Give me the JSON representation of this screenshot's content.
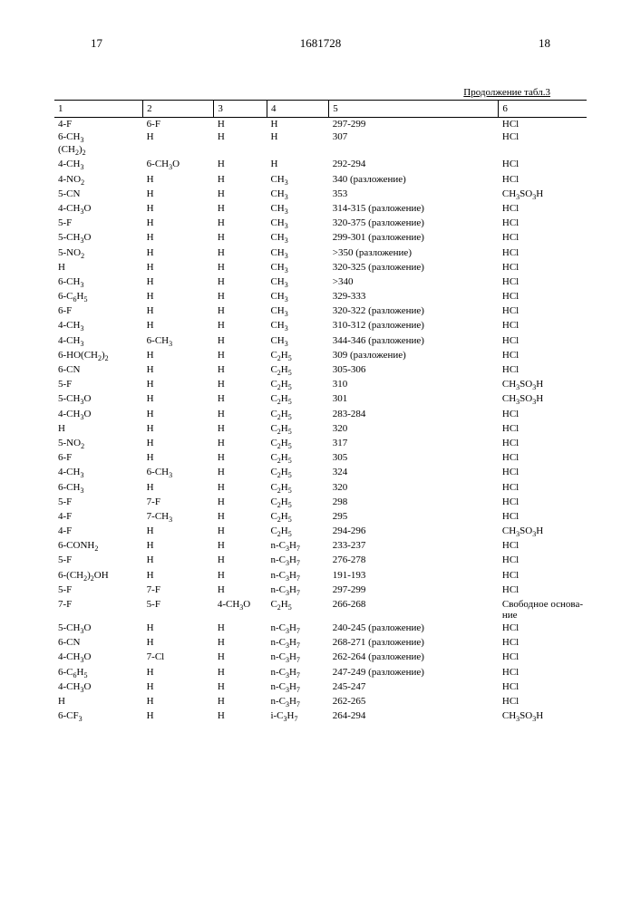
{
  "header": {
    "page_left": "17",
    "doc_number": "1681728",
    "page_right": "18"
  },
  "caption": "Продолжение табл.3",
  "columns": [
    "1",
    "2",
    "3",
    "4",
    "5",
    "6"
  ],
  "rows": [
    [
      "4-F",
      "6-F",
      "H",
      "H",
      "297-299",
      "HCl"
    ],
    [
      "6-CH₃\n(CH₂)₂",
      "H",
      "H",
      "H",
      "307",
      "HCl"
    ],
    [
      "4-CH₃",
      "6-CH₃O",
      "H",
      "H",
      "292-294",
      "HCl"
    ],
    [
      "4-NO₂",
      "H",
      "H",
      "CH₃",
      "340 (разложение)",
      "HCl"
    ],
    [
      "5-CN",
      "H",
      "H",
      "CH₃",
      "353",
      "CH₃SO₃H"
    ],
    [
      "4-CH₃O",
      "H",
      "H",
      "CH₃",
      "314-315 (разложение)",
      "HCl"
    ],
    [
      "5-F",
      "H",
      "H",
      "CH₃",
      "320-375 (разложение)",
      "HCl"
    ],
    [
      "5-CH₃O",
      "H",
      "H",
      "CH₃",
      "299-301 (разложение)",
      "HCl"
    ],
    [
      "5-NO₂",
      "H",
      "H",
      "CH₃",
      ">350 (разложение)",
      "HCl"
    ],
    [
      "H",
      "H",
      "H",
      "CH₃",
      "320-325 (разложение)",
      "HCl"
    ],
    [
      "6-CH₃",
      "H",
      "H",
      "CH₃",
      ">340",
      "HCl"
    ],
    [
      "6-C₆H₅",
      "H",
      "H",
      "CH₃",
      "329-333",
      "HCl"
    ],
    [
      "6-F",
      "H",
      "H",
      "CH₃",
      "320-322 (разложение)",
      "HCl"
    ],
    [
      "4-CH₃",
      "H",
      "H",
      "CH₃",
      "310-312 (разложение)",
      "HCl"
    ],
    [
      "4-CH₃",
      "6-CH₃",
      "H",
      "CH₃",
      "344-346 (разложение)",
      "HCl"
    ],
    [
      "6-HO(CH₂)₂",
      "H",
      "H",
      "C₂H₅",
      "309 (разложение)",
      "HCl"
    ],
    [
      "6-CN",
      "H",
      "H",
      "C₂H₅",
      "305-306",
      "HCl"
    ],
    [
      "5-F",
      "H",
      "H",
      "C₂H₅",
      "310",
      "CH₃SO₃H"
    ],
    [
      "5-CH₃O",
      "H",
      "H",
      "C₂H₅",
      "301",
      "CH₃SO₃H"
    ],
    [
      "4-CH₃O",
      "H",
      "H",
      "C₂H₅",
      "283-284",
      "HCl"
    ],
    [
      "H",
      "H",
      "H",
      "C₂H₅",
      "320",
      "HCl"
    ],
    [
      "5-NO₂",
      "H",
      "H",
      "C₂H₅",
      "317",
      "HCl"
    ],
    [
      "6-F",
      "H",
      "H",
      "C₂H₅",
      "305",
      "HCl"
    ],
    [
      "4-CH₃",
      "6-CH₃",
      "H",
      "C₂H₅",
      "324",
      "HCl"
    ],
    [
      "6-CH₃",
      "H",
      "H",
      "C₂H₅",
      "320",
      "HCl"
    ],
    [
      "5-F",
      "7-F",
      "H",
      "C₂H₅",
      "298",
      "HCl"
    ],
    [
      "4-F",
      "7-CH₃",
      "H",
      "C₂H₅",
      "295",
      "HCl"
    ],
    [
      "4-F",
      "H",
      "H",
      "C₂H₅",
      "294-296",
      "CH₃SO₃H"
    ],
    [
      "6-CONH₂",
      "H",
      "H",
      "n-C₃H₇",
      "233-237",
      "HCl"
    ],
    [
      "5-F",
      "H",
      "H",
      "n-C₃H₇",
      "276-278",
      "HCl"
    ],
    [
      "6-(CH₂)₂OH",
      "H",
      "H",
      "n-C₃H₇",
      "191-193",
      "HCl"
    ],
    [
      "5-F",
      "7-F",
      "H",
      "n-C₃H₇",
      "297-299",
      "HCl"
    ],
    [
      "7-F",
      "5-F",
      "4-CH₃O",
      "C₂H₅",
      "266-268",
      "Свободное основа-\nние"
    ],
    [
      "5-CH₃O",
      "H",
      "H",
      "n-C₃H₇",
      "240-245 (разложение)",
      "HCl"
    ],
    [
      "6-CN",
      "H",
      "H",
      "n-C₃H₇",
      "268-271 (разложение)",
      "HCl"
    ],
    [
      "4-CH₃O",
      "7-Cl",
      "H",
      "n-C₃H₇",
      "262-264 (разложение)",
      "HCl"
    ],
    [
      "6-C₆H₅",
      "H",
      "H",
      "n-C₃H₇",
      "247-249 (разложение)",
      "HCl"
    ],
    [
      "4-CH₃O",
      "H",
      "H",
      "n-C₃H₇",
      "245-247",
      "HCl"
    ],
    [
      "H",
      "H",
      "H",
      "n-C₃H₇",
      "262-265",
      "HCl"
    ],
    [
      "6-CF₃",
      "H",
      "H",
      "i-C₃H₇",
      "264-294",
      "CH₃SO₃H"
    ]
  ]
}
